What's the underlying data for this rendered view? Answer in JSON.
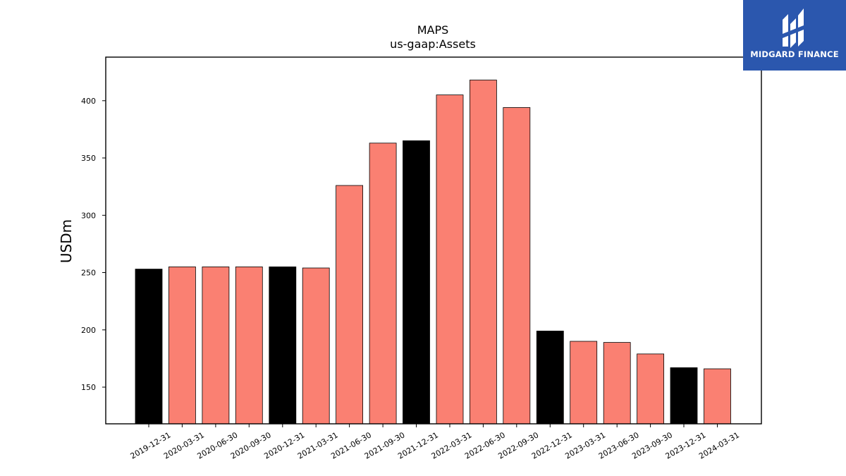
{
  "chart_data": {
    "type": "bar",
    "title": "MAPS",
    "subtitle": "us-gaap:Assets",
    "xlabel": "",
    "ylabel": "USDm",
    "ylim": [
      118,
      438
    ],
    "yticks": [
      150,
      200,
      250,
      300,
      350,
      400
    ],
    "categories": [
      "2019-12-31",
      "2020-03-31",
      "2020-06-30",
      "2020-09-30",
      "2020-12-31",
      "2021-03-31",
      "2021-06-30",
      "2021-09-30",
      "2021-12-31",
      "2022-03-31",
      "2022-06-30",
      "2022-09-30",
      "2022-12-31",
      "2023-03-31",
      "2023-06-30",
      "2023-09-30",
      "2023-12-31",
      "2024-03-31"
    ],
    "values": [
      253,
      255,
      255,
      255,
      255,
      254,
      326,
      363,
      365,
      405,
      418,
      394,
      199,
      190,
      189,
      179,
      167,
      166
    ],
    "bar_colors": [
      "#000000",
      "#fa8072",
      "#fa8072",
      "#fa8072",
      "#000000",
      "#fa8072",
      "#fa8072",
      "#fa8072",
      "#000000",
      "#fa8072",
      "#fa8072",
      "#fa8072",
      "#000000",
      "#fa8072",
      "#fa8072",
      "#fa8072",
      "#000000",
      "#fa8072"
    ],
    "grid": false,
    "legend": "none"
  },
  "logo": {
    "text": "MIDGARD FINANCE",
    "background": "#2b57ae",
    "icon": "midgard-logo-icon"
  }
}
